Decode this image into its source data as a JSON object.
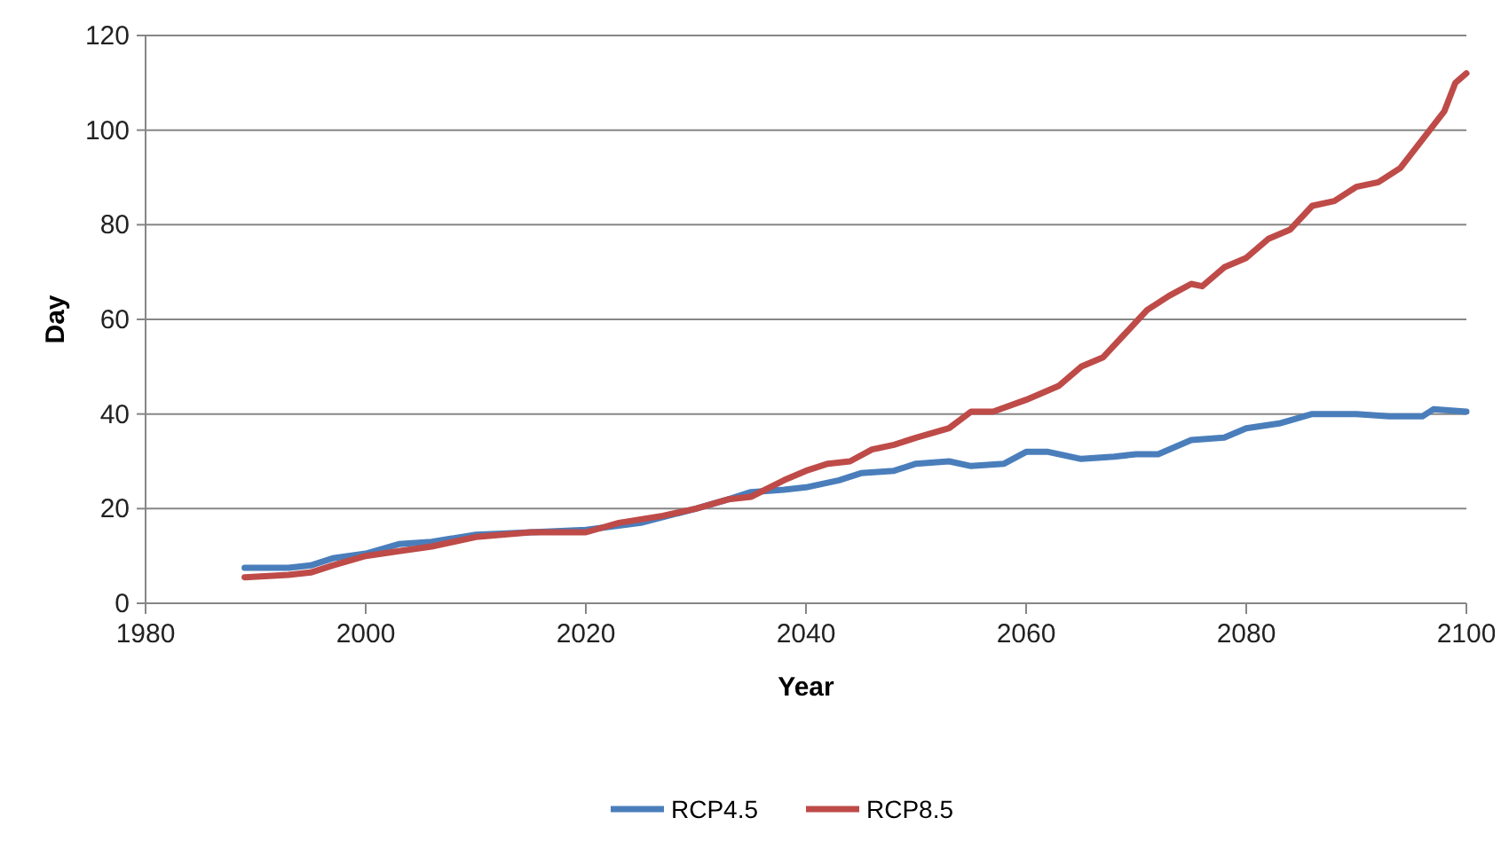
{
  "chart_data": {
    "type": "line",
    "xlabel": "Year",
    "ylabel": "Day",
    "xlim": [
      1980,
      2100
    ],
    "xticks": [
      1980,
      2000,
      2020,
      2040,
      2060,
      2080,
      2100
    ],
    "ylim": [
      0,
      120
    ],
    "yticks": [
      0,
      20,
      40,
      60,
      80,
      100,
      120
    ],
    "grid": "y",
    "legend": "bottom",
    "marker": "none",
    "line_style": "solid",
    "series": [
      {
        "name": "RCP4.5",
        "color": "#4a7ebb",
        "x": [
          1989,
          1993,
          1995,
          1997,
          2000,
          2003,
          2006,
          2010,
          2015,
          2020,
          2025,
          2030,
          2033,
          2035,
          2038,
          2040,
          2043,
          2045,
          2048,
          2050,
          2053,
          2055,
          2058,
          2060,
          2062,
          2065,
          2068,
          2070,
          2072,
          2075,
          2078,
          2080,
          2083,
          2086,
          2090,
          2093,
          2096,
          2097,
          2100
        ],
        "values": [
          7.5,
          7.5,
          8,
          9.5,
          10.5,
          12.5,
          13,
          14.5,
          15,
          15.5,
          17,
          20,
          22,
          23.5,
          24,
          24.5,
          26,
          27.5,
          28,
          29.5,
          30,
          29,
          29.5,
          32,
          32,
          30.5,
          31,
          31.5,
          31.5,
          34.5,
          35,
          37,
          38,
          40,
          40,
          39.5,
          39.5,
          41,
          40.5
        ]
      },
      {
        "name": "RCP8.5",
        "color": "#be4b48",
        "x": [
          1989,
          1993,
          1995,
          1997,
          2000,
          2003,
          2006,
          2010,
          2015,
          2018,
          2020,
          2023,
          2027,
          2030,
          2033,
          2035,
          2038,
          2040,
          2042,
          2044,
          2046,
          2048,
          2050,
          2053,
          2055,
          2057,
          2060,
          2063,
          2065,
          2067,
          2069,
          2071,
          2073,
          2075,
          2076,
          2078,
          2080,
          2082,
          2084,
          2086,
          2088,
          2090,
          2092,
          2094,
          2096,
          2098,
          2099,
          2100
        ],
        "values": [
          5.5,
          6,
          6.5,
          8,
          10,
          11,
          12,
          14,
          15,
          15,
          15,
          17,
          18.5,
          20,
          22,
          22.5,
          26,
          28,
          29.5,
          30,
          32.5,
          33.5,
          35,
          37,
          40.5,
          40.5,
          43,
          46,
          50,
          52,
          57,
          62,
          65,
          67.5,
          67,
          71,
          73,
          77,
          79,
          84,
          85,
          88,
          89,
          92,
          98,
          104,
          110,
          112
        ]
      }
    ]
  }
}
